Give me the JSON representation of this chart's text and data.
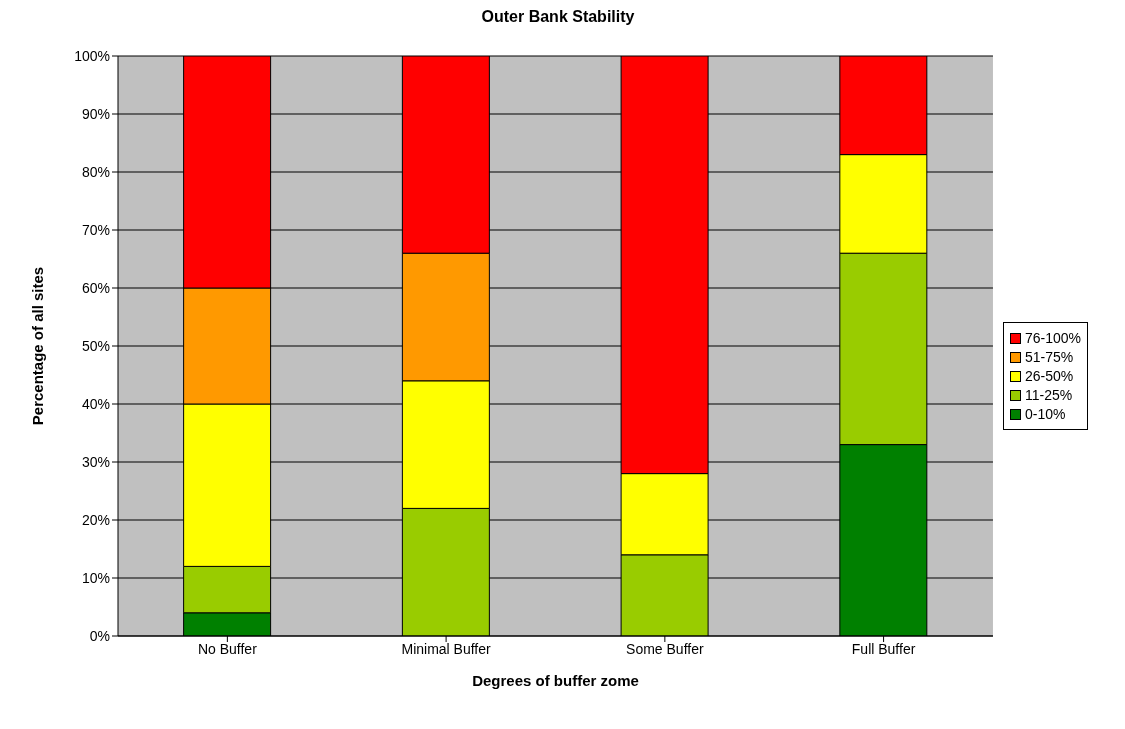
{
  "chart_data": {
    "type": "bar",
    "title": "Outer Bank Stability",
    "xlabel": "Degrees of buffer zome",
    "ylabel": "Percentage of all sites",
    "categories": [
      "No Buffer",
      "Minimal Buffer",
      "Some Buffer",
      "Full Buffer"
    ],
    "stacked": true,
    "series": [
      {
        "name": "0-10%",
        "color": "#008000",
        "values": [
          4,
          0,
          0,
          33
        ]
      },
      {
        "name": "11-25%",
        "color": "#99cc00",
        "values": [
          8,
          22,
          14,
          33
        ]
      },
      {
        "name": "26-50%",
        "color": "#ffff00",
        "values": [
          28,
          22,
          14,
          17
        ]
      },
      {
        "name": "51-75%",
        "color": "#ff9900",
        "values": [
          20,
          22,
          0,
          0
        ]
      },
      {
        "name": "76-100%",
        "color": "#ff0000",
        "values": [
          40,
          34,
          72,
          17
        ]
      }
    ],
    "ylim": [
      0,
      100
    ],
    "yticks": [
      {
        "value": 0,
        "label": "0%"
      },
      {
        "value": 10,
        "label": "10%"
      },
      {
        "value": 20,
        "label": "20%"
      },
      {
        "value": 30,
        "label": "30%"
      },
      {
        "value": 40,
        "label": "40%"
      },
      {
        "value": 50,
        "label": "50%"
      },
      {
        "value": 60,
        "label": "60%"
      },
      {
        "value": 70,
        "label": "70%"
      },
      {
        "value": 80,
        "label": "80%"
      },
      {
        "value": 90,
        "label": "90%"
      },
      {
        "value": 100,
        "label": "100%"
      }
    ],
    "grid": "y",
    "legend": "right"
  }
}
